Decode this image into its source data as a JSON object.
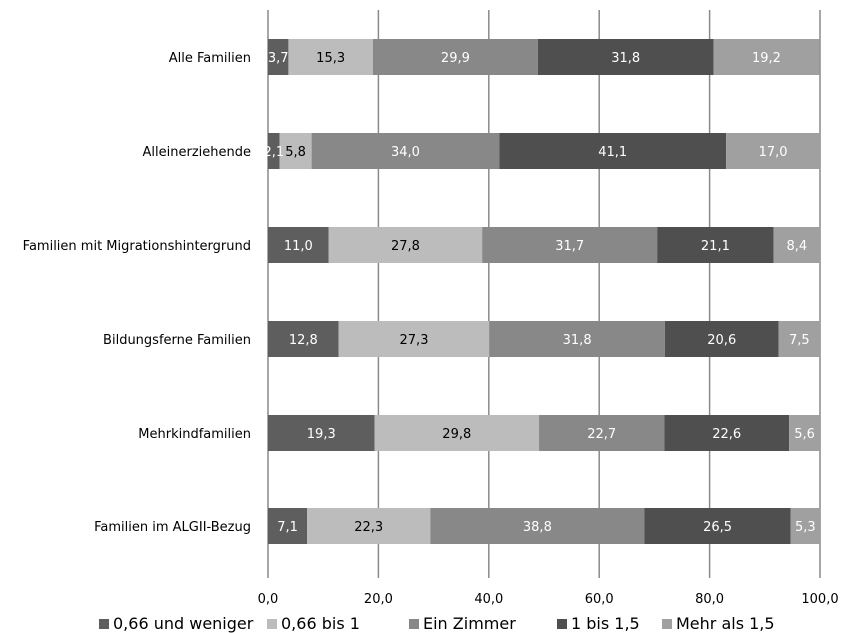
{
  "chart_data": {
    "type": "bar",
    "orientation": "horizontal",
    "stacked": true,
    "title": "",
    "xlabel": "",
    "ylabel": "",
    "xlim": [
      0,
      100
    ],
    "x_ticks": [
      "0,0",
      "20,0",
      "40,0",
      "60,0",
      "80,0",
      "100,0"
    ],
    "grid": "vertical",
    "legend_position": "bottom",
    "categories": [
      "Alle Familien",
      "Alleinerziehende",
      "Familien mit Migrationshintergrund",
      "Bildungsferne Familien",
      "Mehrkindfamilien",
      "Familien im ALGII-Bezug"
    ],
    "series": [
      {
        "name": "0,66 und weniger",
        "color": "#5e5e5e",
        "label_color": "#ffffff",
        "values": [
          3.7,
          2.1,
          11.0,
          12.8,
          19.3,
          7.1
        ],
        "labels": [
          "3,7",
          "2,1",
          "11,0",
          "12,8",
          "19,3",
          "7,1"
        ]
      },
      {
        "name": "0,66 bis 1",
        "color": "#bcbcbc",
        "label_color": "#000000",
        "values": [
          15.3,
          5.8,
          27.8,
          27.3,
          29.8,
          22.3
        ],
        "labels": [
          "15,3",
          "5,8",
          "27,8",
          "27,3",
          "29,8",
          "22,3"
        ]
      },
      {
        "name": "Ein Zimmer",
        "color": "#888888",
        "label_color": "#ffffff",
        "values": [
          29.9,
          34.0,
          31.7,
          31.8,
          22.7,
          38.8
        ],
        "labels": [
          "29,9",
          "34,0",
          "31,7",
          "31,8",
          "22,7",
          "38,8"
        ]
      },
      {
        "name": "1 bis 1,5",
        "color": "#4f4f4f",
        "label_color": "#ffffff",
        "values": [
          31.8,
          41.1,
          21.1,
          20.6,
          22.6,
          26.5
        ],
        "labels": [
          "31,8",
          "41,1",
          "21,1",
          "20,6",
          "22,6",
          "26,5"
        ]
      },
      {
        "name": "Mehr als 1,5",
        "color": "#a0a0a0",
        "label_color": "#ffffff",
        "values": [
          19.2,
          17.0,
          8.4,
          7.5,
          5.6,
          5.3
        ],
        "labels": [
          "19,2",
          "17,0",
          "8,4",
          "7,5",
          "5,6",
          "5,3"
        ]
      }
    ]
  }
}
